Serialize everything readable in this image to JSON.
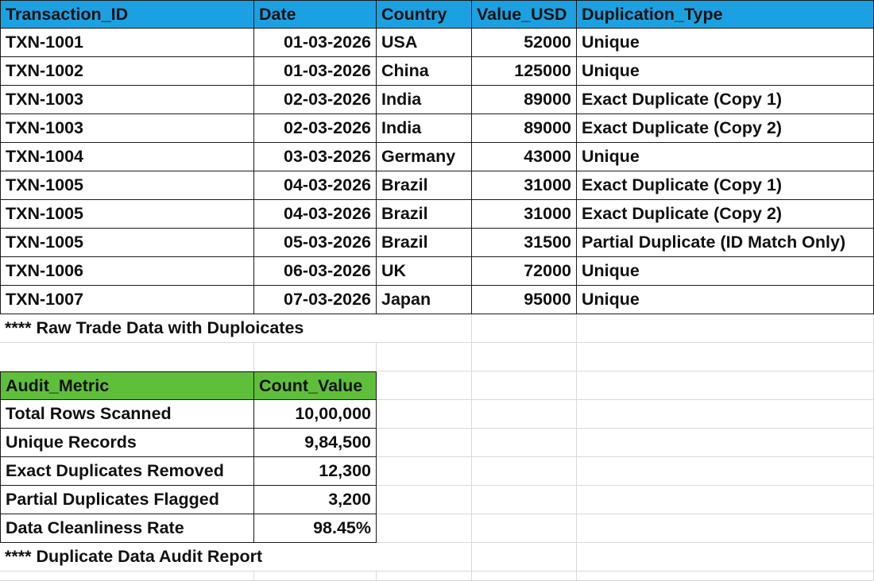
{
  "raw_table": {
    "headers": [
      "Transaction_ID",
      "Date",
      "Country",
      "Value_USD",
      "Duplication_Type"
    ],
    "rows": [
      [
        "TXN-1001",
        "01-03-2026",
        "USA",
        "52000",
        "Unique"
      ],
      [
        "TXN-1002",
        "01-03-2026",
        "China",
        "125000",
        "Unique"
      ],
      [
        "TXN-1003",
        "02-03-2026",
        "India",
        "89000",
        "Exact Duplicate (Copy 1)"
      ],
      [
        "TXN-1003",
        "02-03-2026",
        "India",
        "89000",
        "Exact Duplicate (Copy 2)"
      ],
      [
        "TXN-1004",
        "03-03-2026",
        "Germany",
        "43000",
        "Unique"
      ],
      [
        "TXN-1005",
        "04-03-2026",
        "Brazil",
        "31000",
        "Exact Duplicate (Copy 1)"
      ],
      [
        "TXN-1005",
        "04-03-2026",
        "Brazil",
        "31000",
        "Exact Duplicate (Copy 2)"
      ],
      [
        "TXN-1005",
        "05-03-2026",
        "Brazil",
        "31500",
        "Partial Duplicate (ID Match Only)"
      ],
      [
        "TXN-1006",
        "06-03-2026",
        "UK",
        "72000",
        "Unique"
      ],
      [
        "TXN-1007",
        "07-03-2026",
        "Japan",
        "95000",
        "Unique"
      ]
    ],
    "note": "**** Raw Trade Data with Duploicates"
  },
  "audit_table": {
    "headers": [
      "Audit_Metric",
      "Count_Value"
    ],
    "rows": [
      [
        "Total Rows Scanned",
        "10,00,000"
      ],
      [
        "Unique Records",
        "9,84,500"
      ],
      [
        "Exact Duplicates Removed",
        "12,300"
      ],
      [
        "Partial Duplicates Flagged",
        "3,200"
      ],
      [
        "Data Cleanliness Rate",
        "98.45%"
      ]
    ],
    "note": "**** Duplicate Data Audit Report"
  },
  "colors": {
    "raw_header": "#1ba1e2",
    "audit_header": "#5fbf3a",
    "gridline": "#d9d9d9",
    "table_border": "#1a1a1a"
  }
}
